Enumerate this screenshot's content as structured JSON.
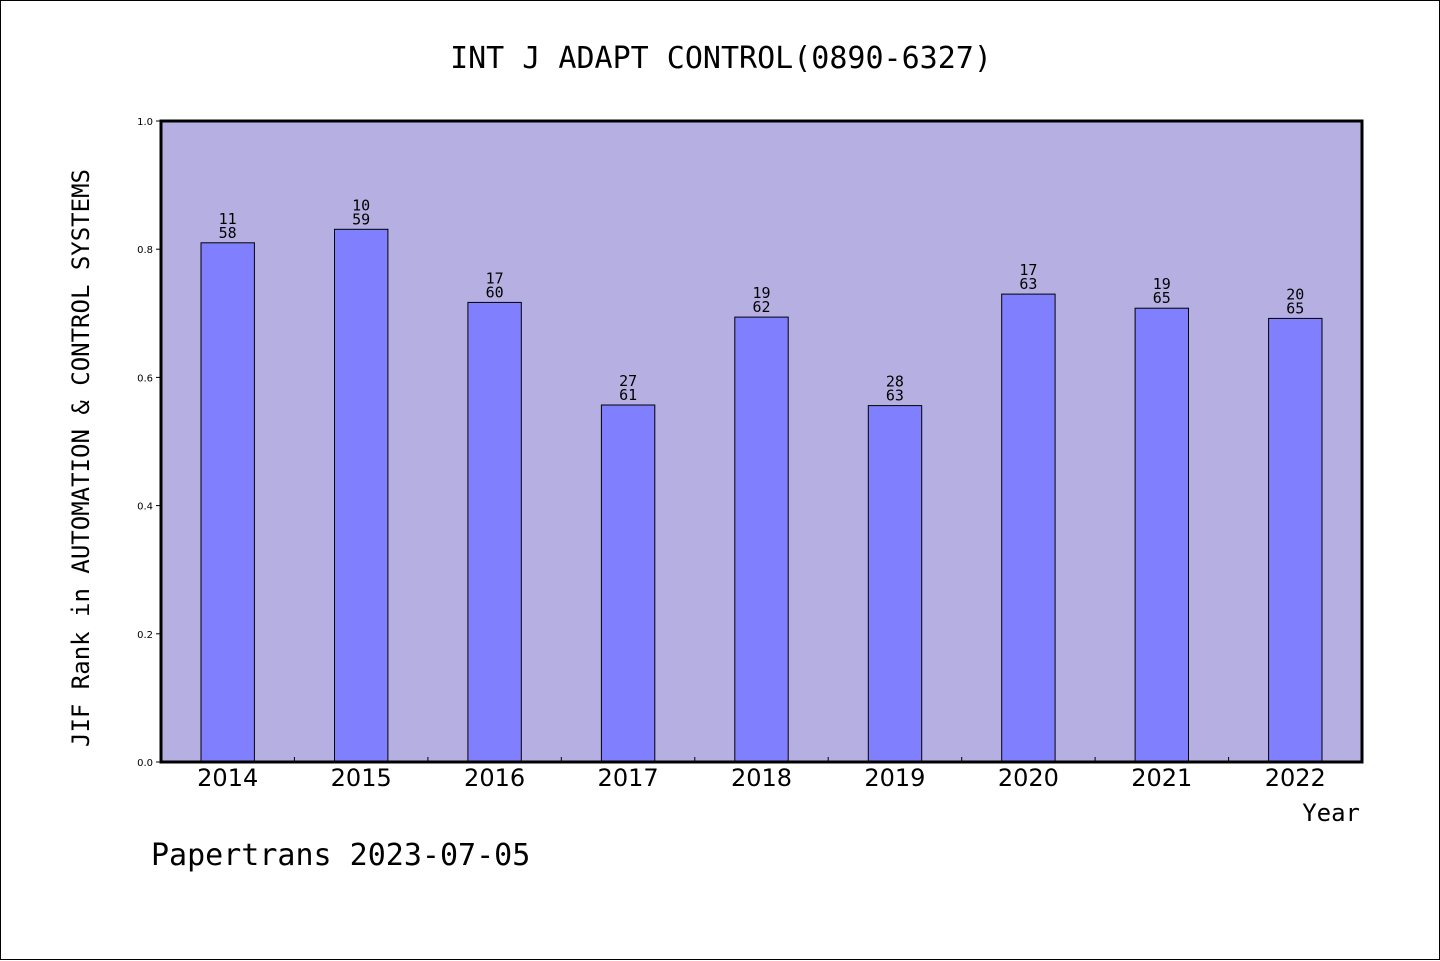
{
  "chart_data": {
    "type": "bar",
    "title": "INT J ADAPT CONTROL(0890-6327)",
    "xlabel": "Year",
    "ylabel": "JIF Rank in AUTOMATION & CONTROL SYSTEMS",
    "ylim": [
      0,
      1.0
    ],
    "yticks": [
      "0.0",
      "0.2",
      "0.4",
      "0.6",
      "0.8",
      "1.0"
    ],
    "categories": [
      "2014",
      "2015",
      "2016",
      "2017",
      "2018",
      "2019",
      "2020",
      "2021",
      "2022"
    ],
    "values": [
      0.81,
      0.831,
      0.717,
      0.557,
      0.694,
      0.556,
      0.73,
      0.708,
      0.692
    ],
    "rank_labels": [
      [
        "11",
        "58"
      ],
      [
        "10",
        "59"
      ],
      [
        "17",
        "60"
      ],
      [
        "27",
        "61"
      ],
      [
        "19",
        "62"
      ],
      [
        "28",
        "63"
      ],
      [
        "17",
        "63"
      ],
      [
        "19",
        "65"
      ],
      [
        "20",
        "65"
      ]
    ],
    "grid": false,
    "colors": {
      "plot_background": "#b6b0e2",
      "bar_fill": "#8080ff",
      "bar_stroke": "#000000"
    }
  },
  "footer": "Papertrans 2023-07-05"
}
